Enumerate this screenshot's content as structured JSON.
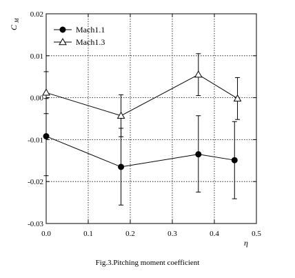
{
  "chart_data": {
    "type": "scatter",
    "title": "",
    "caption": "Fig.3.Pitching moment coefficient",
    "xlabel": "η",
    "ylabel_main": "C",
    "ylabel_sub": "M",
    "xlim": [
      0.0,
      0.5
    ],
    "ylim": [
      -0.03,
      0.02
    ],
    "xticks": [
      0.0,
      0.1,
      0.2,
      0.3,
      0.4,
      0.5
    ],
    "xtick_labels": [
      "0.0",
      "0.1",
      "0.2",
      "0.3",
      "0.4",
      "0.5"
    ],
    "yticks": [
      -0.03,
      -0.02,
      -0.01,
      0.0,
      0.01,
      0.02
    ],
    "ytick_labels": [
      "-0.03",
      "-0.02",
      "-0.01",
      "0.00",
      "0.01",
      "0.02"
    ],
    "grid": true,
    "legend_position": "top-left",
    "series": [
      {
        "name": "Mach1.1",
        "marker": "filled-circle",
        "x": [
          0.0,
          0.178,
          0.362,
          0.448
        ],
        "y": [
          -0.0092,
          -0.0165,
          -0.0135,
          -0.0149
        ],
        "err_low": [
          -0.0186,
          -0.0256,
          -0.0225,
          -0.0241
        ],
        "err_high": [
          -0.0002,
          -0.0073,
          -0.0043,
          -0.0057
        ]
      },
      {
        "name": "Mach1.3",
        "marker": "open-triangle",
        "x": [
          0.0,
          0.178,
          0.362,
          0.455
        ],
        "y": [
          0.0012,
          -0.0043,
          0.0055,
          -0.0002
        ],
        "err_low": [
          -0.0038,
          -0.0093,
          0.0005,
          -0.0052
        ],
        "err_high": [
          0.0062,
          0.0007,
          0.0105,
          0.0048
        ]
      }
    ]
  }
}
